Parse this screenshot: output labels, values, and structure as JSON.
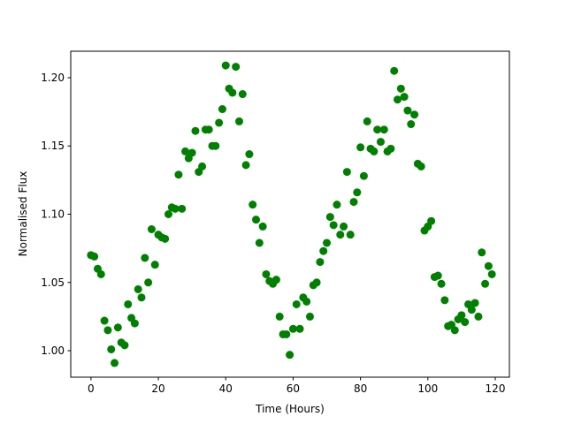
{
  "chart_data": {
    "type": "scatter",
    "xlabel": "Time (Hours)",
    "ylabel": "Normalised Flux",
    "color": "#008000",
    "xlim": [
      -6,
      124.2
    ],
    "ylim": [
      0.9806,
      1.2194
    ],
    "xticks": [
      0,
      20,
      40,
      60,
      80,
      100,
      120
    ],
    "yticks": [
      {
        "value": 1.0,
        "label": "1.00"
      },
      {
        "value": 1.05,
        "label": "1.05"
      },
      {
        "value": 1.1,
        "label": "1.10"
      },
      {
        "value": 1.15,
        "label": "1.15"
      },
      {
        "value": 1.2,
        "label": "1.20"
      }
    ],
    "x": [
      0,
      1,
      2,
      3,
      4,
      5,
      6,
      7,
      8,
      9,
      10,
      11,
      12,
      13,
      14,
      15,
      16,
      17,
      18,
      19,
      20,
      21,
      22,
      23,
      24,
      25,
      26,
      27,
      28,
      29,
      30,
      31,
      32,
      33,
      34,
      35,
      36,
      37,
      38,
      39,
      40,
      41,
      42,
      43,
      44,
      45,
      46,
      47,
      48,
      49,
      50,
      51,
      52,
      53,
      54,
      55,
      56,
      57,
      58,
      59,
      60,
      61,
      62,
      63,
      64,
      65,
      66,
      67,
      68,
      69,
      70,
      71,
      72,
      73,
      74,
      75,
      76,
      77,
      78,
      79,
      80,
      81,
      82,
      83,
      84,
      85,
      86,
      87,
      88,
      89,
      90,
      91,
      92,
      93,
      94,
      95,
      96,
      97,
      98,
      99,
      100,
      101,
      102,
      103,
      104,
      105,
      106,
      107,
      108,
      109,
      110,
      111,
      112,
      113,
      114,
      115,
      116,
      117,
      118,
      119
    ],
    "values": [
      1.07,
      1.069,
      1.06,
      1.056,
      1.022,
      1.015,
      1.001,
      0.991,
      1.017,
      1.006,
      1.004,
      1.034,
      1.024,
      1.02,
      1.045,
      1.039,
      1.068,
      1.05,
      1.089,
      1.063,
      1.085,
      1.083,
      1.082,
      1.1,
      1.105,
      1.104,
      1.129,
      1.104,
      1.146,
      1.141,
      1.145,
      1.161,
      1.131,
      1.135,
      1.162,
      1.162,
      1.15,
      1.15,
      1.167,
      1.177,
      1.209,
      1.192,
      1.189,
      1.208,
      1.168,
      1.188,
      1.136,
      1.144,
      1.107,
      1.096,
      1.079,
      1.091,
      1.056,
      1.051,
      1.049,
      1.052,
      1.025,
      1.012,
      1.012,
      0.997,
      1.016,
      1.034,
      1.016,
      1.039,
      1.036,
      1.025,
      1.048,
      1.05,
      1.065,
      1.073,
      1.079,
      1.098,
      1.092,
      1.107,
      1.085,
      1.091,
      1.131,
      1.085,
      1.109,
      1.116,
      1.149,
      1.128,
      1.168,
      1.148,
      1.146,
      1.162,
      1.153,
      1.162,
      1.146,
      1.148,
      1.205,
      1.184,
      1.192,
      1.186,
      1.176,
      1.166,
      1.173,
      1.137,
      1.135,
      1.088,
      1.091,
      1.095,
      1.054,
      1.055,
      1.049,
      1.037,
      1.018,
      1.019,
      1.015,
      1.023,
      1.026,
      1.021,
      1.034,
      1.03,
      1.035,
      1.025,
      1.072,
      1.049,
      1.062,
      1.056
    ]
  }
}
